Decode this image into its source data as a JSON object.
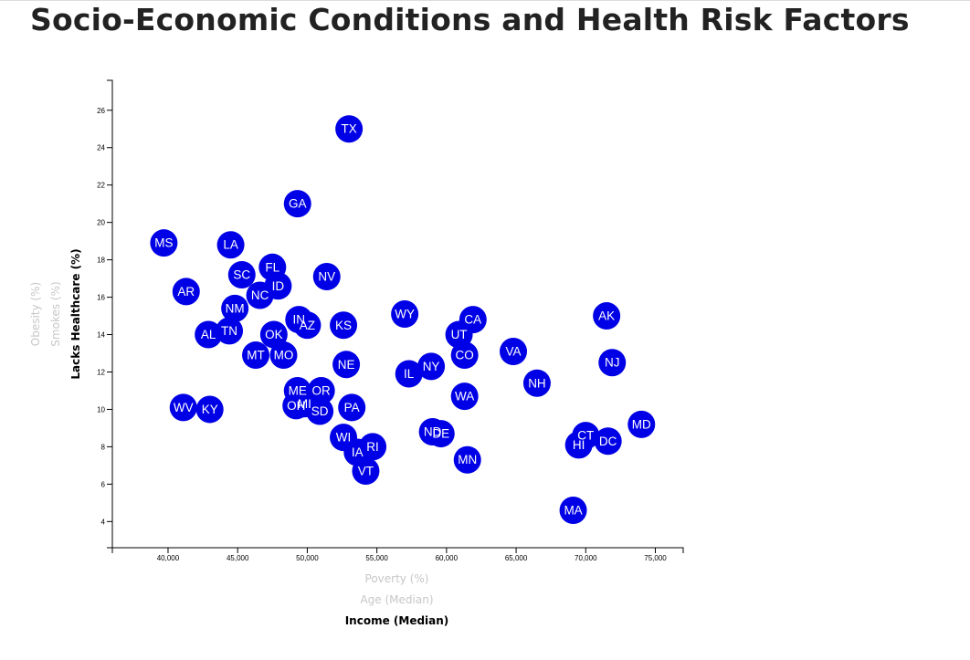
{
  "page": {
    "title": "Socio-Economic Conditions and Health Risk Factors"
  },
  "chart_data": {
    "type": "scatter",
    "x_axis": {
      "active_label": "Income (Median)",
      "options": [
        "Poverty (%)",
        "Age (Median)",
        "Income (Median)"
      ],
      "range": [
        36000,
        77000
      ],
      "ticks": [
        40000,
        45000,
        50000,
        55000,
        60000,
        65000,
        70000,
        75000
      ],
      "tick_labels": [
        "40,000",
        "45,000",
        "50,000",
        "55,000",
        "60,000",
        "65,000",
        "70,000",
        "75,000"
      ]
    },
    "y_axis": {
      "active_label": "Lacks Healthcare (%)",
      "options": [
        "Lacks Healthcare (%)",
        "Smokes (%)",
        "Obesity (%)"
      ],
      "range": [
        2.6,
        27.6
      ],
      "ticks": [
        4,
        6,
        8,
        10,
        12,
        14,
        16,
        18,
        20,
        22,
        24,
        26
      ],
      "tick_labels": [
        "4",
        "6",
        "8",
        "10",
        "12",
        "14",
        "16",
        "18",
        "20",
        "22",
        "24",
        "26"
      ]
    },
    "points": [
      {
        "state": "TX",
        "x": 53000,
        "y": 25.0
      },
      {
        "state": "GA",
        "x": 49300,
        "y": 21.0
      },
      {
        "state": "MS",
        "x": 39700,
        "y": 18.9
      },
      {
        "state": "LA",
        "x": 44500,
        "y": 18.8
      },
      {
        "state": "FL",
        "x": 47500,
        "y": 17.6
      },
      {
        "state": "SC",
        "x": 45300,
        "y": 17.2
      },
      {
        "state": "NV",
        "x": 51400,
        "y": 17.1
      },
      {
        "state": "ID",
        "x": 47900,
        "y": 16.6
      },
      {
        "state": "AR",
        "x": 41300,
        "y": 16.3
      },
      {
        "state": "NC",
        "x": 46600,
        "y": 16.1
      },
      {
        "state": "NM",
        "x": 44800,
        "y": 15.4
      },
      {
        "state": "WY",
        "x": 57000,
        "y": 15.1
      },
      {
        "state": "AK",
        "x": 71500,
        "y": 15.0
      },
      {
        "state": "IN",
        "x": 49400,
        "y": 14.8
      },
      {
        "state": "CA",
        "x": 61900,
        "y": 14.8
      },
      {
        "state": "KS",
        "x": 52600,
        "y": 14.5
      },
      {
        "state": "AZ",
        "x": 50000,
        "y": 14.5
      },
      {
        "state": "TN",
        "x": 44400,
        "y": 14.2
      },
      {
        "state": "AL",
        "x": 42900,
        "y": 14.0
      },
      {
        "state": "OK",
        "x": 47600,
        "y": 14.0
      },
      {
        "state": "UT",
        "x": 60900,
        "y": 14.0
      },
      {
        "state": "VA",
        "x": 64800,
        "y": 13.1
      },
      {
        "state": "MT",
        "x": 46300,
        "y": 12.9
      },
      {
        "state": "MO",
        "x": 48300,
        "y": 12.9
      },
      {
        "state": "CO",
        "x": 61300,
        "y": 12.9
      },
      {
        "state": "NJ",
        "x": 71900,
        "y": 12.5
      },
      {
        "state": "NE",
        "x": 52800,
        "y": 12.4
      },
      {
        "state": "NY",
        "x": 58900,
        "y": 12.3
      },
      {
        "state": "IL",
        "x": 57300,
        "y": 11.9
      },
      {
        "state": "NH",
        "x": 66500,
        "y": 11.4
      },
      {
        "state": "ME",
        "x": 49300,
        "y": 11.0
      },
      {
        "state": "OR",
        "x": 51000,
        "y": 11.0
      },
      {
        "state": "WA",
        "x": 61300,
        "y": 10.7
      },
      {
        "state": "OH",
        "x": 49200,
        "y": 10.2
      },
      {
        "state": "MI",
        "x": 49800,
        "y": 10.3
      },
      {
        "state": "PA",
        "x": 53200,
        "y": 10.1
      },
      {
        "state": "WV",
        "x": 41100,
        "y": 10.1
      },
      {
        "state": "KY",
        "x": 43000,
        "y": 10.0
      },
      {
        "state": "SD",
        "x": 50900,
        "y": 9.9
      },
      {
        "state": "MD",
        "x": 74000,
        "y": 9.2
      },
      {
        "state": "ND",
        "x": 59000,
        "y": 8.8
      },
      {
        "state": "DE",
        "x": 59600,
        "y": 8.7
      },
      {
        "state": "CT",
        "x": 70000,
        "y": 8.6
      },
      {
        "state": "WI",
        "x": 52600,
        "y": 8.5
      },
      {
        "state": "DC",
        "x": 71600,
        "y": 8.3
      },
      {
        "state": "HI",
        "x": 69500,
        "y": 8.1
      },
      {
        "state": "RI",
        "x": 54700,
        "y": 8.0
      },
      {
        "state": "IA",
        "x": 53600,
        "y": 7.7
      },
      {
        "state": "MN",
        "x": 61500,
        "y": 7.3
      },
      {
        "state": "VT",
        "x": 54200,
        "y": 6.7
      },
      {
        "state": "MA",
        "x": 69100,
        "y": 4.6
      }
    ]
  }
}
